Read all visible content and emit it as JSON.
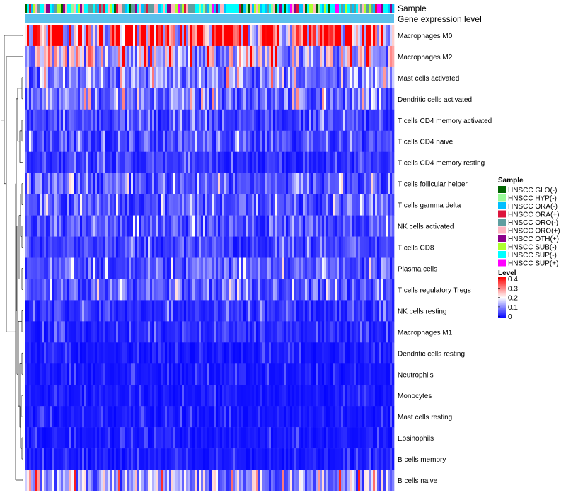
{
  "chart_data": {
    "type": "heatmap",
    "title": "",
    "annotation_tracks": [
      "Sample",
      "Gene expression level"
    ],
    "rows": [
      {
        "label": "Macrophages M0",
        "mean": 0.31
      },
      {
        "label": "Macrophages M2",
        "mean": 0.16
      },
      {
        "label": "Mast cells activated",
        "mean": 0.1
      },
      {
        "label": "Dendritic cells activated",
        "mean": 0.09
      },
      {
        "label": "T cells CD4 memory activated",
        "mean": 0.05
      },
      {
        "label": "T cells CD4 naive",
        "mean": 0.06
      },
      {
        "label": "T cells CD4 memory resting",
        "mean": 0.04
      },
      {
        "label": "T cells follicular helper",
        "mean": 0.07
      },
      {
        "label": "T cells gamma delta",
        "mean": 0.07
      },
      {
        "label": "NK cells activated",
        "mean": 0.06
      },
      {
        "label": "T cells CD8",
        "mean": 0.05
      },
      {
        "label": "Plasma cells",
        "mean": 0.07
      },
      {
        "label": "T cells regulatory  Tregs",
        "mean": 0.07
      },
      {
        "label": "NK cells resting",
        "mean": 0.04
      },
      {
        "label": "Macrophages M1",
        "mean": 0.03
      },
      {
        "label": "Dendritic cells resting",
        "mean": 0.02
      },
      {
        "label": "Neutrophils",
        "mean": 0.02
      },
      {
        "label": "Monocytes",
        "mean": 0.02
      },
      {
        "label": "Mast cells resting",
        "mean": 0.02
      },
      {
        "label": "Eosinophils",
        "mean": 0.02
      },
      {
        "label": "B cells memory",
        "mean": 0.02
      },
      {
        "label": "B cells naive",
        "mean": 0.12
      }
    ],
    "legends": {
      "sample": {
        "title": "Sample",
        "entries": [
          {
            "label": "HNSCC GLO(-)",
            "color": "#006400"
          },
          {
            "label": "HNSCC HYP(-)",
            "color": "#98fb98"
          },
          {
            "label": "HNSCC ORA(-)",
            "color": "#00bfff"
          },
          {
            "label": "HNSCC ORA(+)",
            "color": "#dc143c"
          },
          {
            "label": "HNSCC ORO(-)",
            "color": "#5f9ea0"
          },
          {
            "label": "HNSCC ORO(+)",
            "color": "#ffb6c1"
          },
          {
            "label": "HNSCC OTH(+)",
            "color": "#8b008b"
          },
          {
            "label": "HNSCC SUB(-)",
            "color": "#adff2f"
          },
          {
            "label": "HNSCC SUP(-)",
            "color": "#00ffff"
          },
          {
            "label": "HNSCC SUP(+)",
            "color": "#ff00ff"
          }
        ]
      },
      "level": {
        "title": "Level",
        "range": [
          0,
          0.4
        ],
        "ticks": [
          "0.4",
          "0.3",
          "0.2",
          "0.1",
          "0"
        ],
        "colors": [
          "#0000ff",
          "#ffffff",
          "#ff0000"
        ]
      }
    },
    "expression_track_color": "#5bc0eb",
    "n_samples": 174
  }
}
